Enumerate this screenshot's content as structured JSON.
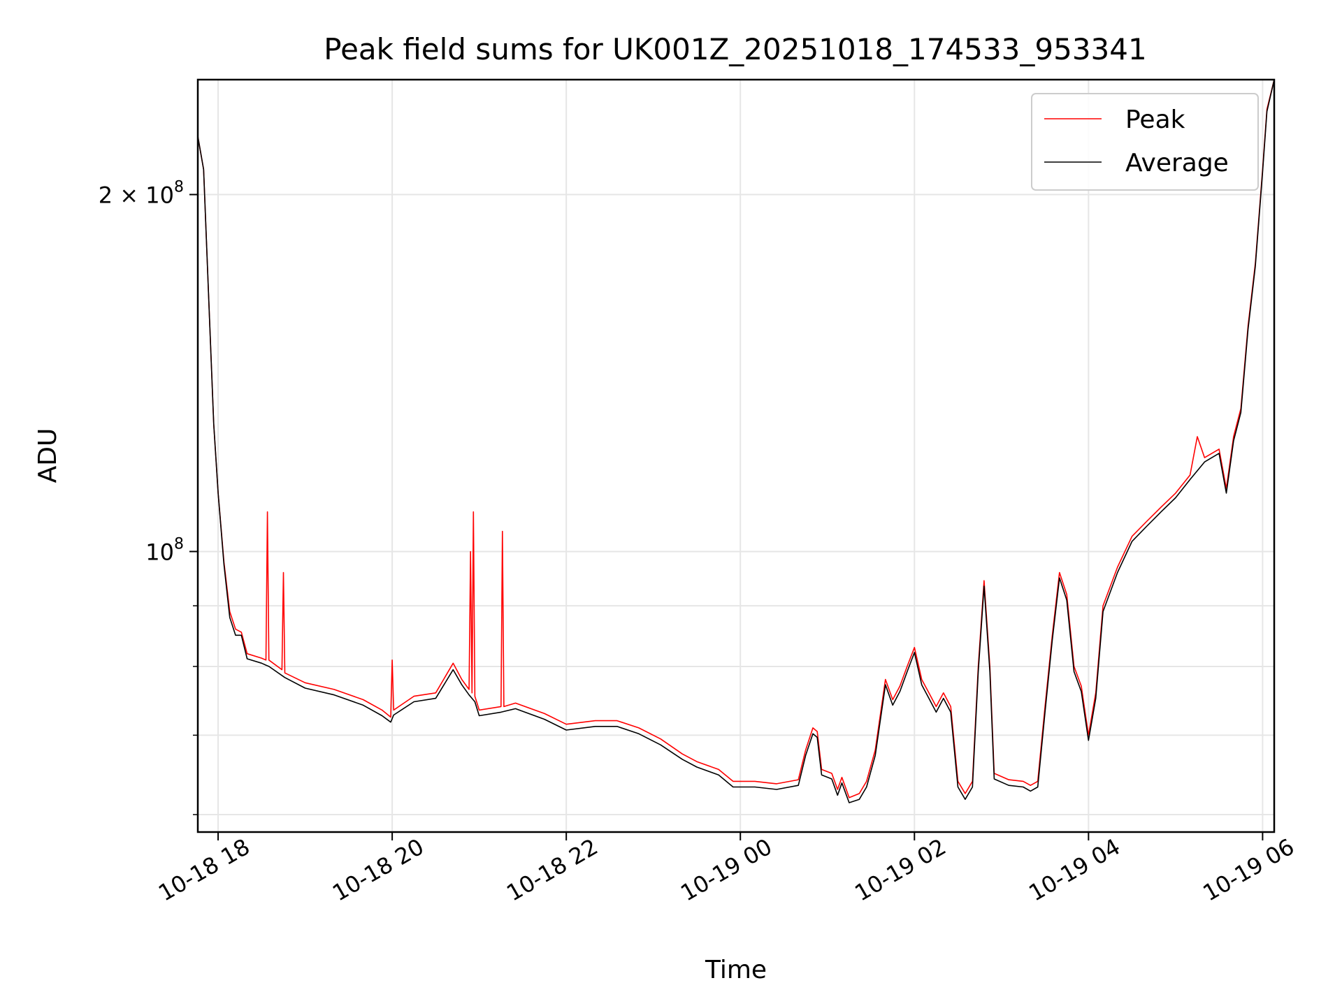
{
  "chart_data": {
    "type": "line",
    "title": "Peak field sums for UK001Z_20251018_174533_953341",
    "xlabel": "Time",
    "ylabel": "ADU",
    "y_scale": "log",
    "ylim": [
      58000000,
      250000000
    ],
    "xlim": [
      "2025-10-18 17:46",
      "2025-10-19 06:08"
    ],
    "grid": true,
    "legend_position": "upper-right",
    "x_ticks": [
      {
        "t": "2025-10-18 18:00",
        "label": "10-18 18"
      },
      {
        "t": "2025-10-18 20:00",
        "label": "10-18 20"
      },
      {
        "t": "2025-10-18 22:00",
        "label": "10-18 22"
      },
      {
        "t": "2025-10-19 00:00",
        "label": "10-19 00"
      },
      {
        "t": "2025-10-19 02:00",
        "label": "10-19 02"
      },
      {
        "t": "2025-10-19 04:00",
        "label": "10-19 04"
      },
      {
        "t": "2025-10-19 06:00",
        "label": "10-19 06"
      }
    ],
    "y_ticks_major": [
      {
        "v": 100000000,
        "base": "10",
        "exp": "8",
        "mult": ""
      },
      {
        "v": 200000000,
        "base": "10",
        "exp": "8",
        "mult": "2 × "
      }
    ],
    "y_ticks_minor": [
      60000000,
      70000000,
      80000000,
      90000000
    ],
    "series": [
      {
        "name": "Peak",
        "color": "#ff0000",
        "points": [
          [
            "2025-10-18 17:46",
            224000000
          ],
          [
            "2025-10-18 17:50",
            210000000
          ],
          [
            "2025-10-18 17:54",
            158000000
          ],
          [
            "2025-10-18 17:57",
            128000000
          ],
          [
            "2025-10-18 18:00",
            112000000
          ],
          [
            "2025-10-18 18:04",
            98000000
          ],
          [
            "2025-10-18 18:08",
            89000000
          ],
          [
            "2025-10-18 18:12",
            86000000
          ],
          [
            "2025-10-18 18:16",
            85500000
          ],
          [
            "2025-10-18 18:20",
            82000000
          ],
          [
            "2025-10-18 18:30",
            81300000
          ],
          [
            "2025-10-18 18:33",
            81000000
          ],
          [
            "2025-10-18 18:34",
            108000000
          ],
          [
            "2025-10-18 18:35",
            81000000
          ],
          [
            "2025-10-18 18:44",
            79500000
          ],
          [
            "2025-10-18 18:45",
            96000000
          ],
          [
            "2025-10-18 18:46",
            79000000
          ],
          [
            "2025-10-18 19:00",
            77500000
          ],
          [
            "2025-10-18 19:20",
            76500000
          ],
          [
            "2025-10-18 19:40",
            75000000
          ],
          [
            "2025-10-18 19:53",
            73500000
          ],
          [
            "2025-10-18 19:59",
            72500000
          ],
          [
            "2025-10-18 20:00",
            81000000
          ],
          [
            "2025-10-18 20:01",
            73500000
          ],
          [
            "2025-10-18 20:15",
            75500000
          ],
          [
            "2025-10-18 20:30",
            76000000
          ],
          [
            "2025-10-18 20:42",
            80500000
          ],
          [
            "2025-10-18 20:48",
            78000000
          ],
          [
            "2025-10-18 20:53",
            76500000
          ],
          [
            "2025-10-18 20:54",
            100000000
          ],
          [
            "2025-10-18 20:55",
            76000000
          ],
          [
            "2025-10-18 20:56",
            108000000
          ],
          [
            "2025-10-18 20:57",
            75500000
          ],
          [
            "2025-10-18 21:00",
            73500000
          ],
          [
            "2025-10-18 21:15",
            74000000
          ],
          [
            "2025-10-18 21:16",
            104000000
          ],
          [
            "2025-10-18 21:17",
            74000000
          ],
          [
            "2025-10-18 21:25",
            74500000
          ],
          [
            "2025-10-18 21:45",
            73000000
          ],
          [
            "2025-10-18 22:00",
            71500000
          ],
          [
            "2025-10-18 22:20",
            72000000
          ],
          [
            "2025-10-18 22:35",
            72000000
          ],
          [
            "2025-10-18 22:50",
            71000000
          ],
          [
            "2025-10-18 23:05",
            69500000
          ],
          [
            "2025-10-18 23:20",
            67500000
          ],
          [
            "2025-10-18 23:30",
            66500000
          ],
          [
            "2025-10-18 23:45",
            65500000
          ],
          [
            "2025-10-18 23:55",
            64000000
          ],
          [
            "2025-10-19 00:10",
            64000000
          ],
          [
            "2025-10-19 00:25",
            63700000
          ],
          [
            "2025-10-19 00:40",
            64200000
          ],
          [
            "2025-10-19 00:45",
            68000000
          ],
          [
            "2025-10-19 00:50",
            71000000
          ],
          [
            "2025-10-19 00:53",
            70500000
          ],
          [
            "2025-10-19 00:56",
            65500000
          ],
          [
            "2025-10-19 01:03",
            65000000
          ],
          [
            "2025-10-19 01:07",
            63000000
          ],
          [
            "2025-10-19 01:10",
            64500000
          ],
          [
            "2025-10-19 01:15",
            62000000
          ],
          [
            "2025-10-19 01:22",
            62500000
          ],
          [
            "2025-10-19 01:27",
            64000000
          ],
          [
            "2025-10-19 01:33",
            68000000
          ],
          [
            "2025-10-19 01:40",
            78000000
          ],
          [
            "2025-10-19 01:45",
            75000000
          ],
          [
            "2025-10-19 01:50",
            77000000
          ],
          [
            "2025-10-19 01:55",
            80000000
          ],
          [
            "2025-10-19 02:00",
            83000000
          ],
          [
            "2025-10-19 02:05",
            78000000
          ],
          [
            "2025-10-19 02:10",
            76000000
          ],
          [
            "2025-10-19 02:15",
            74000000
          ],
          [
            "2025-10-19 02:20",
            76000000
          ],
          [
            "2025-10-19 02:25",
            74000000
          ],
          [
            "2025-10-19 02:30",
            64000000
          ],
          [
            "2025-10-19 02:35",
            62500000
          ],
          [
            "2025-10-19 02:40",
            64000000
          ],
          [
            "2025-10-19 02:44",
            80000000
          ],
          [
            "2025-10-19 02:48",
            94500000
          ],
          [
            "2025-10-19 02:52",
            80000000
          ],
          [
            "2025-10-19 02:55",
            65000000
          ],
          [
            "2025-10-19 03:05",
            64200000
          ],
          [
            "2025-10-19 03:15",
            64000000
          ],
          [
            "2025-10-19 03:20",
            63500000
          ],
          [
            "2025-10-19 03:25",
            64000000
          ],
          [
            "2025-10-19 03:30",
            74000000
          ],
          [
            "2025-10-19 03:35",
            85000000
          ],
          [
            "2025-10-19 03:40",
            96000000
          ],
          [
            "2025-10-19 03:45",
            92000000
          ],
          [
            "2025-10-19 03:50",
            80000000
          ],
          [
            "2025-10-19 03:55",
            77000000
          ],
          [
            "2025-10-19 04:00",
            70000000
          ],
          [
            "2025-10-19 04:05",
            76000000
          ],
          [
            "2025-10-19 04:10",
            90000000
          ],
          [
            "2025-10-19 04:20",
            97000000
          ],
          [
            "2025-10-19 04:30",
            103000000
          ],
          [
            "2025-10-19 04:40",
            106000000
          ],
          [
            "2025-10-19 04:50",
            109000000
          ],
          [
            "2025-10-19 05:00",
            112000000
          ],
          [
            "2025-10-19 05:10",
            116000000
          ],
          [
            "2025-10-19 05:15",
            125000000
          ],
          [
            "2025-10-19 05:20",
            120000000
          ],
          [
            "2025-10-19 05:30",
            122000000
          ],
          [
            "2025-10-19 05:35",
            113000000
          ],
          [
            "2025-10-19 05:40",
            125000000
          ],
          [
            "2025-10-19 05:45",
            132000000
          ],
          [
            "2025-10-19 05:50",
            155000000
          ],
          [
            "2025-10-19 05:55",
            175000000
          ],
          [
            "2025-10-19 06:00",
            210000000
          ],
          [
            "2025-10-19 06:03",
            236000000
          ],
          [
            "2025-10-19 06:08",
            250000000
          ]
        ]
      },
      {
        "name": "Average",
        "color": "#000000",
        "points": [
          [
            "2025-10-18 17:46",
            224000000
          ],
          [
            "2025-10-18 17:50",
            210000000
          ],
          [
            "2025-10-18 17:54",
            158000000
          ],
          [
            "2025-10-18 17:57",
            128000000
          ],
          [
            "2025-10-18 18:00",
            112000000
          ],
          [
            "2025-10-18 18:04",
            97500000
          ],
          [
            "2025-10-18 18:08",
            88000000
          ],
          [
            "2025-10-18 18:12",
            85000000
          ],
          [
            "2025-10-18 18:16",
            85000000
          ],
          [
            "2025-10-18 18:20",
            81200000
          ],
          [
            "2025-10-18 18:30",
            80500000
          ],
          [
            "2025-10-18 18:33",
            80200000
          ],
          [
            "2025-10-18 18:35",
            80000000
          ],
          [
            "2025-10-18 18:46",
            78300000
          ],
          [
            "2025-10-18 19:00",
            76700000
          ],
          [
            "2025-10-18 19:20",
            75700000
          ],
          [
            "2025-10-18 19:40",
            74200000
          ],
          [
            "2025-10-18 19:53",
            72700000
          ],
          [
            "2025-10-18 19:59",
            71800000
          ],
          [
            "2025-10-18 20:01",
            72800000
          ],
          [
            "2025-10-18 20:15",
            74700000
          ],
          [
            "2025-10-18 20:30",
            75200000
          ],
          [
            "2025-10-18 20:42",
            79500000
          ],
          [
            "2025-10-18 20:48",
            77200000
          ],
          [
            "2025-10-18 20:53",
            75700000
          ],
          [
            "2025-10-18 20:57",
            74700000
          ],
          [
            "2025-10-18 21:00",
            72700000
          ],
          [
            "2025-10-18 21:15",
            73200000
          ],
          [
            "2025-10-18 21:25",
            73700000
          ],
          [
            "2025-10-18 21:45",
            72200000
          ],
          [
            "2025-10-18 22:00",
            70700000
          ],
          [
            "2025-10-18 22:20",
            71200000
          ],
          [
            "2025-10-18 22:35",
            71200000
          ],
          [
            "2025-10-18 22:50",
            70200000
          ],
          [
            "2025-10-18 23:05",
            68700000
          ],
          [
            "2025-10-18 23:20",
            66800000
          ],
          [
            "2025-10-18 23:30",
            65800000
          ],
          [
            "2025-10-18 23:45",
            64800000
          ],
          [
            "2025-10-18 23:55",
            63300000
          ],
          [
            "2025-10-19 00:10",
            63300000
          ],
          [
            "2025-10-19 00:25",
            63000000
          ],
          [
            "2025-10-19 00:40",
            63500000
          ],
          [
            "2025-10-19 00:45",
            67300000
          ],
          [
            "2025-10-19 00:50",
            70200000
          ],
          [
            "2025-10-19 00:53",
            69700000
          ],
          [
            "2025-10-19 00:56",
            64800000
          ],
          [
            "2025-10-19 01:03",
            64300000
          ],
          [
            "2025-10-19 01:07",
            62300000
          ],
          [
            "2025-10-19 01:10",
            63800000
          ],
          [
            "2025-10-19 01:15",
            61400000
          ],
          [
            "2025-10-19 01:22",
            61800000
          ],
          [
            "2025-10-19 01:27",
            63300000
          ],
          [
            "2025-10-19 01:33",
            67300000
          ],
          [
            "2025-10-19 01:40",
            77200000
          ],
          [
            "2025-10-19 01:45",
            74200000
          ],
          [
            "2025-10-19 01:50",
            76200000
          ],
          [
            "2025-10-19 01:55",
            79200000
          ],
          [
            "2025-10-19 02:00",
            82200000
          ],
          [
            "2025-10-19 02:05",
            77200000
          ],
          [
            "2025-10-19 02:10",
            75200000
          ],
          [
            "2025-10-19 02:15",
            73200000
          ],
          [
            "2025-10-19 02:20",
            75200000
          ],
          [
            "2025-10-19 02:25",
            73200000
          ],
          [
            "2025-10-19 02:30",
            63300000
          ],
          [
            "2025-10-19 02:35",
            61800000
          ],
          [
            "2025-10-19 02:40",
            63300000
          ],
          [
            "2025-10-19 02:44",
            79200000
          ],
          [
            "2025-10-19 02:48",
            93500000
          ],
          [
            "2025-10-19 02:52",
            79200000
          ],
          [
            "2025-10-19 02:55",
            64300000
          ],
          [
            "2025-10-19 03:05",
            63500000
          ],
          [
            "2025-10-19 03:15",
            63300000
          ],
          [
            "2025-10-19 03:20",
            62800000
          ],
          [
            "2025-10-19 03:25",
            63300000
          ],
          [
            "2025-10-19 03:30",
            73200000
          ],
          [
            "2025-10-19 03:35",
            84200000
          ],
          [
            "2025-10-19 03:40",
            95000000
          ],
          [
            "2025-10-19 03:45",
            91000000
          ],
          [
            "2025-10-19 03:50",
            79200000
          ],
          [
            "2025-10-19 03:55",
            76200000
          ],
          [
            "2025-10-19 04:00",
            69300000
          ],
          [
            "2025-10-19 04:05",
            75200000
          ],
          [
            "2025-10-19 04:10",
            89000000
          ],
          [
            "2025-10-19 04:20",
            96000000
          ],
          [
            "2025-10-19 04:30",
            102000000
          ],
          [
            "2025-10-19 04:40",
            105000000
          ],
          [
            "2025-10-19 04:50",
            108000000
          ],
          [
            "2025-10-19 05:00",
            111000000
          ],
          [
            "2025-10-19 05:10",
            115000000
          ],
          [
            "2025-10-19 05:20",
            119000000
          ],
          [
            "2025-10-19 05:30",
            121000000
          ],
          [
            "2025-10-19 05:35",
            112000000
          ],
          [
            "2025-10-19 05:40",
            124000000
          ],
          [
            "2025-10-19 05:45",
            131000000
          ],
          [
            "2025-10-19 05:50",
            154000000
          ],
          [
            "2025-10-19 05:55",
            174000000
          ],
          [
            "2025-10-19 06:00",
            209000000
          ],
          [
            "2025-10-19 06:03",
            235000000
          ],
          [
            "2025-10-19 06:08",
            250000000
          ]
        ]
      }
    ]
  }
}
